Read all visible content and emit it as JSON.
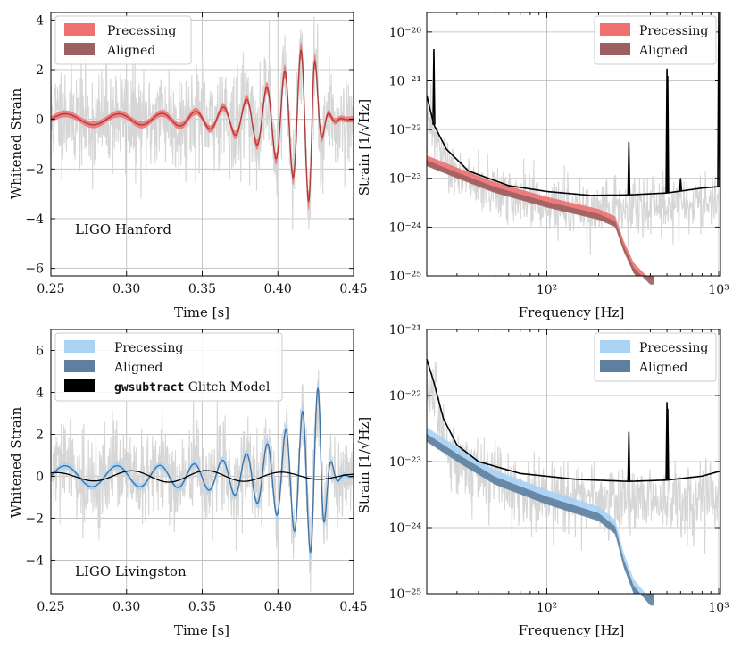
{
  "colors": {
    "precessing_h": "#f07070",
    "aligned_h": "#9c6060",
    "precessing_l": "#a9d3f5",
    "aligned_l": "#5f7f9f",
    "waveform_line_h": "#b23a3a",
    "waveform_line_l": "#3f74a8",
    "data_gray": "#d6d6d6",
    "psd_black": "#000000"
  },
  "chart_data": [
    {
      "id": "hanford-time",
      "type": "line",
      "ylabel": "Whitened Strain",
      "xlabel": "Time [s]",
      "xlim": [
        0.25,
        0.45
      ],
      "ylim": [
        -6.3,
        4.3
      ],
      "xticks": [
        0.25,
        0.3,
        0.35,
        0.4,
        0.45
      ],
      "xtick_labels": [
        "0.25",
        "0.30",
        "0.35",
        "0.40",
        "0.45"
      ],
      "yticks": [
        4,
        2,
        0,
        -2,
        -4,
        -6
      ],
      "ytick_labels": [
        "4",
        "2",
        "0",
        "−2",
        "−4",
        "−6"
      ],
      "annotation": "LIGO Hanford",
      "legend": [
        "Precessing",
        "Aligned"
      ],
      "waveform": {
        "t_merger": 0.423,
        "peak_amplitude": 3.6,
        "early_amplitude": 0.22,
        "frequency_at_0.25s": 26,
        "frequency_at_merger": 110
      }
    },
    {
      "id": "hanford-psd",
      "type": "line",
      "ylabel": "Strain [1/√Hz]",
      "xlabel": "Frequency [Hz]",
      "xscale": "log",
      "yscale": "log",
      "xlim": [
        20,
        1024
      ],
      "ylim_exp": [
        -25,
        -19.6
      ],
      "yticks_exp": [
        -20,
        -21,
        -22,
        -23,
        -24,
        -25
      ],
      "xtick_label": "10²",
      "xtick_label_2": "10³",
      "legend": [
        "Precessing",
        "Aligned"
      ],
      "psd_lines": [
        "10⁻²⁰",
        "10⁻²¹",
        "10⁻²²",
        "10⁻²³",
        "10⁻²⁴",
        "10⁻²⁵"
      ],
      "asd_knots": [
        [
          20,
          -21.3
        ],
        [
          22,
          -21.9
        ],
        [
          26,
          -22.4
        ],
        [
          35,
          -22.85
        ],
        [
          60,
          -23.15
        ],
        [
          100,
          -23.27
        ],
        [
          180,
          -23.35
        ],
        [
          300,
          -23.34
        ],
        [
          500,
          -23.3
        ],
        [
          800,
          -23.2
        ],
        [
          1000,
          -23.17
        ]
      ],
      "lines_hz": [
        [
          22,
          -20.35
        ],
        [
          300,
          -22.25
        ],
        [
          500,
          -20.75
        ],
        [
          505,
          -20.9
        ],
        [
          600,
          -23.0
        ],
        [
          1000,
          -19.6
        ]
      ],
      "signal_knots": [
        [
          20,
          -22.65
        ],
        [
          30,
          -22.9
        ],
        [
          50,
          -23.2
        ],
        [
          100,
          -23.5
        ],
        [
          200,
          -23.75
        ],
        [
          250,
          -23.9
        ],
        [
          280,
          -24.4
        ],
        [
          320,
          -24.85
        ],
        [
          400,
          -25.2
        ]
      ]
    },
    {
      "id": "livingston-time",
      "type": "line",
      "ylabel": "Whitened Strain",
      "xlabel": "Time [s]",
      "xlim": [
        0.25,
        0.45
      ],
      "ylim": [
        -5.6,
        7.0
      ],
      "xticks": [
        0.25,
        0.3,
        0.35,
        0.4,
        0.45
      ],
      "xtick_labels": [
        "0.25",
        "0.30",
        "0.35",
        "0.40",
        "0.45"
      ],
      "yticks": [
        6,
        4,
        2,
        0,
        -2,
        -4
      ],
      "ytick_labels": [
        "6",
        "4",
        "2",
        "0",
        "−2",
        "−4"
      ],
      "annotation": "LIGO Livingston",
      "legend": [
        "Precessing",
        "Aligned",
        "Glitch Model"
      ],
      "legend_mono": "gwsubtract",
      "waveform": {
        "t_merger": 0.428,
        "peak_amplitude": 4.4,
        "early_amplitude": 0.5,
        "frequency_at_0.25s": 27,
        "frequency_at_merger": 110
      },
      "glitch": {
        "amplitude": 0.28,
        "frequency": 20
      }
    },
    {
      "id": "livingston-psd",
      "type": "line",
      "ylabel": "Strain [1/√Hz]",
      "xlabel": "Frequency [Hz]",
      "xscale": "log",
      "yscale": "log",
      "xlim": [
        20,
        1024
      ],
      "ylim_exp": [
        -25,
        -21
      ],
      "yticks_exp": [
        -21,
        -22,
        -23,
        -24,
        -25
      ],
      "xtick_label": "10²",
      "xtick_label_2": "10³",
      "legend": [
        "Precessing",
        "Aligned"
      ],
      "psd_lines": [
        "10⁻²¹",
        "10⁻²²",
        "10⁻²³",
        "10⁻²⁴",
        "10⁻²⁵"
      ],
      "asd_knots": [
        [
          20,
          -21.45
        ],
        [
          22,
          -21.8
        ],
        [
          25,
          -22.35
        ],
        [
          30,
          -22.75
        ],
        [
          40,
          -23.0
        ],
        [
          70,
          -23.18
        ],
        [
          150,
          -23.27
        ],
        [
          300,
          -23.3
        ],
        [
          500,
          -23.28
        ],
        [
          800,
          -23.22
        ],
        [
          1000,
          -23.15
        ]
      ],
      "lines_hz": [
        [
          300,
          -22.55
        ],
        [
          500,
          -22.1
        ],
        [
          505,
          -22.2
        ]
      ],
      "signal_knots": [
        [
          20,
          -22.6
        ],
        [
          30,
          -22.9
        ],
        [
          50,
          -23.25
        ],
        [
          100,
          -23.55
        ],
        [
          200,
          -23.8
        ],
        [
          250,
          -24.0
        ],
        [
          280,
          -24.5
        ],
        [
          320,
          -24.9
        ],
        [
          400,
          -25.2
        ]
      ]
    }
  ]
}
